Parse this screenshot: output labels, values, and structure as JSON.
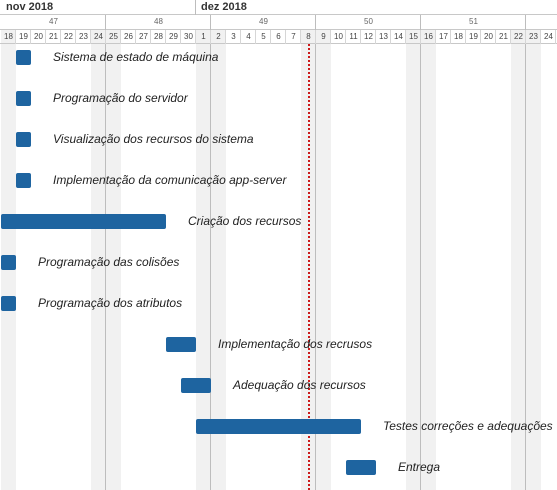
{
  "months": [
    {
      "label": "nov 2018",
      "start_day_index": 0
    },
    {
      "label": "dez 2018",
      "start_day_index": 13
    }
  ],
  "weeks": [
    {
      "label": "47",
      "start_day_index": 0,
      "days": 7
    },
    {
      "label": "48",
      "start_day_index": 7,
      "days": 7
    },
    {
      "label": "49",
      "start_day_index": 14,
      "days": 7
    },
    {
      "label": "50",
      "start_day_index": 21,
      "days": 7
    },
    {
      "label": "51",
      "start_day_index": 28,
      "days": 7
    }
  ],
  "days": [
    "18",
    "19",
    "20",
    "21",
    "22",
    "23",
    "24",
    "25",
    "26",
    "27",
    "28",
    "29",
    "30",
    "1",
    "2",
    "3",
    "4",
    "5",
    "6",
    "7",
    "8",
    "9",
    "10",
    "11",
    "12",
    "13",
    "14",
    "15",
    "16",
    "17",
    "18",
    "19",
    "20",
    "21",
    "22",
    "23",
    "24"
  ],
  "weekend_day_indices": [
    0,
    6,
    7,
    13,
    14,
    20,
    21,
    27,
    28,
    34,
    35
  ],
  "today_day_index": 20.5,
  "colors": {
    "bar": "#1e64a0",
    "today_line": "#cc1a1a"
  },
  "tasks": [
    {
      "name": "Sistema de estado de máquina",
      "start_day_index": 1,
      "duration_days": 1
    },
    {
      "name": "Programação do servidor",
      "start_day_index": 1,
      "duration_days": 1
    },
    {
      "name": "Visualização dos recursos do sistema",
      "start_day_index": 1,
      "duration_days": 1
    },
    {
      "name": "Implementação da comunicação app-server",
      "start_day_index": 1,
      "duration_days": 1
    },
    {
      "name": "Criação dos recursos",
      "start_day_index": 0,
      "duration_days": 11
    },
    {
      "name": "Programação das colisões",
      "start_day_index": 0,
      "duration_days": 1
    },
    {
      "name": "Programação dos atributos",
      "start_day_index": 0,
      "duration_days": 1
    },
    {
      "name": "Implementação dos recrusos",
      "start_day_index": 11,
      "duration_days": 2
    },
    {
      "name": "Adequação dos recursos",
      "start_day_index": 12,
      "duration_days": 2
    },
    {
      "name": "Testes correções e adequações",
      "start_day_index": 13,
      "duration_days": 11
    },
    {
      "name": "Entrega",
      "start_day_index": 23,
      "duration_days": 2
    }
  ]
}
